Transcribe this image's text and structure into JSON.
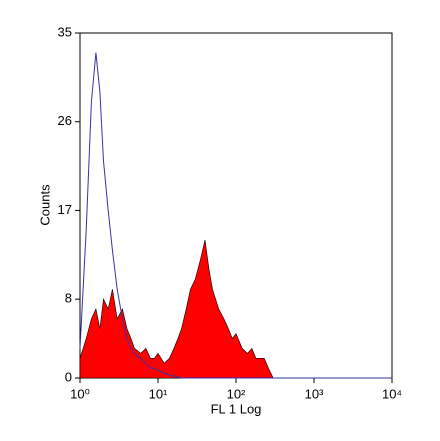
{
  "chart_data": {
    "type": "line",
    "xscale": "log",
    "xlabel": "FL 1 Log",
    "ylabel": "Counts",
    "x": [
      1,
      1.2,
      1.4,
      1.6,
      1.8,
      2,
      2.3,
      2.6,
      3,
      3.5,
      4,
      4.5,
      5,
      6,
      7,
      8,
      9,
      10,
      12,
      14,
      16,
      18,
      20,
      23,
      26,
      30,
      35,
      40,
      45,
      50,
      60,
      70,
      80,
      90,
      100,
      120,
      140,
      160,
      180,
      200,
      230,
      260,
      300,
      400,
      1000,
      10000
    ],
    "series": [
      {
        "color": "#ff0000",
        "filled": true,
        "values": [
          2,
          4,
          6,
          7,
          5,
          8,
          7,
          9,
          6,
          7,
          5,
          4,
          3,
          2.5,
          3,
          2,
          2,
          2.5,
          1.5,
          2,
          3,
          4,
          5,
          7,
          9,
          10,
          12,
          14,
          11,
          9,
          7,
          6,
          5,
          4,
          4.5,
          3,
          2.5,
          3,
          2,
          2,
          2,
          1,
          0,
          0,
          0,
          0
        ]
      },
      {
        "color": "#3333aa",
        "filled": false,
        "values": [
          3,
          15,
          28,
          33,
          29,
          22,
          17,
          13,
          9,
          6,
          4,
          3,
          2.5,
          2,
          1.5,
          1,
          1,
          0.8,
          0.5,
          0.3,
          0.2,
          0.1,
          0,
          0,
          0,
          0,
          0,
          0,
          0,
          0,
          0,
          0,
          0,
          0,
          0,
          0,
          0,
          0,
          0,
          0,
          0,
          0,
          0,
          0,
          0,
          0
        ]
      }
    ],
    "xlim": [
      1,
      10000
    ],
    "xticks": [
      {
        "value": 1,
        "label": "10⁰"
      },
      {
        "value": 10,
        "label": "10¹"
      },
      {
        "value": 100,
        "label": "10²"
      },
      {
        "value": 1000,
        "label": "10³"
      },
      {
        "value": 10000,
        "label": "10⁴"
      }
    ],
    "ylim": [
      0,
      35
    ],
    "yticks": [
      0,
      8,
      17,
      26,
      35
    ]
  }
}
